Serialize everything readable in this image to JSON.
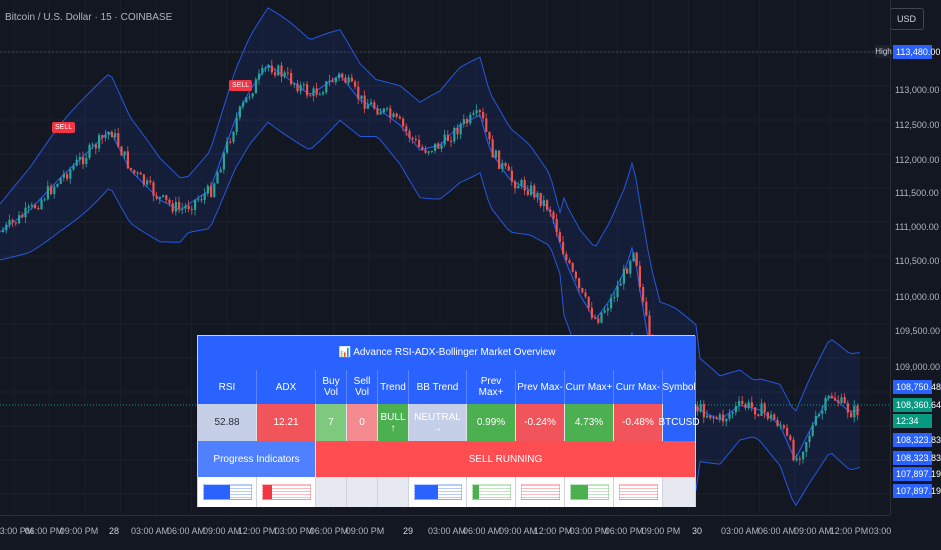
{
  "header": {
    "title": "Bitcoin / U.S. Dollar · 15 · COINBASE",
    "currency": "USD"
  },
  "price_axis": {
    "ticks": [
      "113,000.00",
      "112,500.00",
      "112,000.00",
      "111,500.00",
      "111,000.00",
      "110,500.00",
      "110,000.00",
      "109,500.00",
      "109,000.00"
    ],
    "high_label": "High",
    "high_value": "113,480.00",
    "labels": [
      {
        "text": "108,750.48",
        "bg": "#2962ff"
      },
      {
        "text": "108,360.64",
        "bg": "#089981"
      },
      {
        "text": "12:34",
        "bg": "#089981"
      },
      {
        "text": "108,323.83",
        "bg": "#2962ff"
      },
      {
        "text": "108,323.83",
        "bg": "#2962ff"
      },
      {
        "text": "107,897.19",
        "bg": "#2962ff"
      },
      {
        "text": "107,897.19",
        "bg": "#2962ff"
      }
    ]
  },
  "time_axis": [
    "03:00 PM",
    "06:00 PM",
    "09:00 PM",
    "28",
    "03:00 AM",
    "06:00 AM",
    "09:00 AM",
    "12:00 PM",
    "03:00 PM",
    "06:00 PM",
    "09:00 PM",
    "29",
    "03:00 AM",
    "06:00 AM",
    "09:00 AM",
    "12:00 PM",
    "03:00 PM",
    "06:00 PM",
    "09:00 PM",
    "30",
    "03:00 AM",
    "06:00 AM",
    "09:00 AM",
    "12:00 PM",
    "03:00"
  ],
  "markers": [
    "SELL",
    "SELL"
  ],
  "dashboard": {
    "title": "📊 Advance RSI-ADX-Bollinger Market Overview",
    "headers": [
      "RSI",
      "ADX",
      "Buy Vol",
      "Sell Vol",
      "Trend",
      "BB Trend",
      "Prev Max+",
      "Prev Max-",
      "Curr Max+",
      "Curr Max-",
      "Symbol"
    ],
    "values": [
      {
        "text": "52.88",
        "bg": "#c5cfe8",
        "fg": "#2a2e39"
      },
      {
        "text": "12.21",
        "bg": "#f2545b",
        "fg": "#ffffff"
      },
      {
        "text": "7",
        "bg": "#7fc97f",
        "fg": "#ffffff"
      },
      {
        "text": "0",
        "bg": "#f28a8f",
        "fg": "#ffffff"
      },
      {
        "text": "BULL ↑",
        "bg": "#4caf50",
        "fg": "#ffffff"
      },
      {
        "text": "NEUTRAL →",
        "bg": "#c5cfe8",
        "fg": "#ffffff"
      },
      {
        "text": "0.99%",
        "bg": "#4caf50",
        "fg": "#ffffff"
      },
      {
        "text": "-0.24%",
        "bg": "#f2545b",
        "fg": "#ffffff"
      },
      {
        "text": "4.73%",
        "bg": "#4caf50",
        "fg": "#ffffff"
      },
      {
        "text": "-0.48%",
        "bg": "#f2545b",
        "fg": "#ffffff"
      },
      {
        "text": "BTCUSD",
        "bg": "#2962ff",
        "fg": "#ffffff"
      }
    ],
    "progress_label": "Progress Indicators",
    "status": "SELL RUNNING"
  },
  "colors": {
    "up": "#26a69a",
    "down": "#ef5350",
    "band": "#2962ff",
    "accent": "#2962ff"
  }
}
